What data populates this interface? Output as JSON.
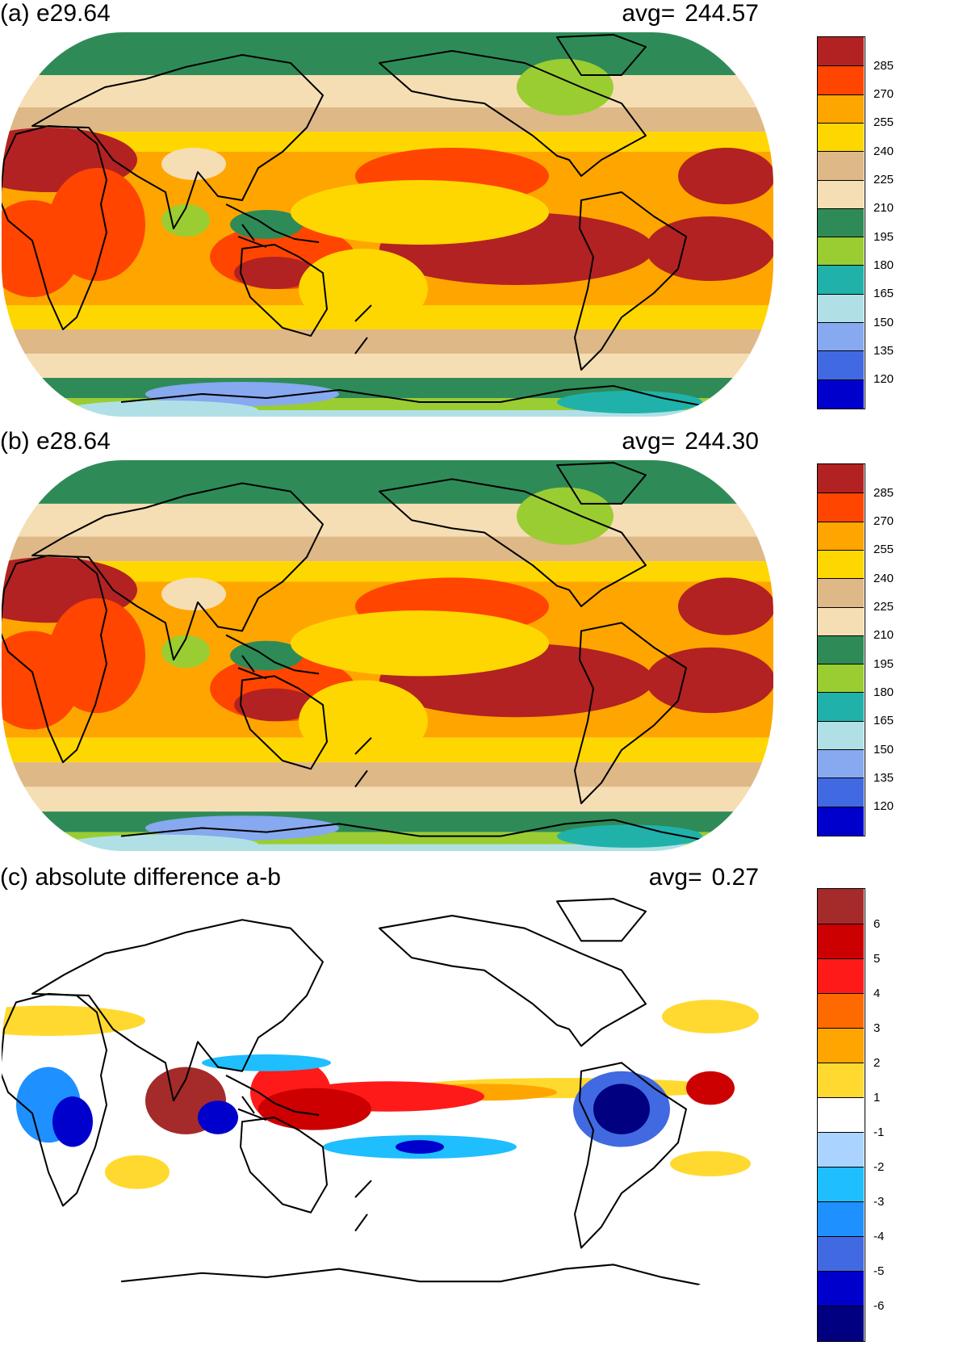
{
  "panels": [
    {
      "id": "a",
      "title": "(a) e29.64",
      "avg_label": "avg=",
      "avg_value": "244.57",
      "kind": "field",
      "colorbar": {
        "colors": [
          "#b22222",
          "#ff4500",
          "#ffa500",
          "#ffd700",
          "#deb887",
          "#f5deb3",
          "#2e8b57",
          "#9acd32",
          "#20b2aa",
          "#b0e0e6",
          "#87a9ef",
          "#4169e1",
          "#0000cd"
        ],
        "labels": [
          "285",
          "270",
          "255",
          "240",
          "225",
          "210",
          "195",
          "180",
          "165",
          "150",
          "135",
          "120"
        ]
      }
    },
    {
      "id": "b",
      "title": "(b) e28.64",
      "avg_label": "avg=",
      "avg_value": "244.30",
      "kind": "field",
      "colorbar": {
        "colors": [
          "#b22222",
          "#ff4500",
          "#ffa500",
          "#ffd700",
          "#deb887",
          "#f5deb3",
          "#2e8b57",
          "#9acd32",
          "#20b2aa",
          "#b0e0e6",
          "#87a9ef",
          "#4169e1",
          "#0000cd"
        ],
        "labels": [
          "285",
          "270",
          "255",
          "240",
          "225",
          "210",
          "195",
          "180",
          "165",
          "150",
          "135",
          "120"
        ]
      }
    },
    {
      "id": "c",
      "title": "(c) absolute difference a-b",
      "avg_label": "avg=",
      "avg_value": "0.27",
      "kind": "diff",
      "colorbar": {
        "colors": [
          "#a52a2a",
          "#cc0000",
          "#ff1a1a",
          "#ff6a00",
          "#ffa500",
          "#ffd92f",
          "#ffffff",
          "#aad4ff",
          "#1ebeff",
          "#1e90ff",
          "#4169e1",
          "#0000cd",
          "#000080"
        ],
        "labels": [
          "6",
          "5",
          "4",
          "3",
          "2",
          "1",
          "-1",
          "-2",
          "-3",
          "-4",
          "-5",
          "-6"
        ]
      }
    }
  ]
}
